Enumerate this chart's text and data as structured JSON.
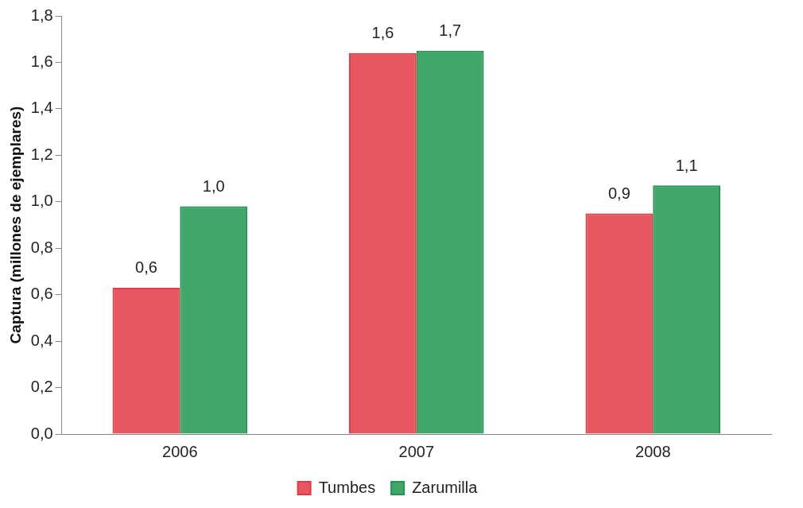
{
  "chart_data": {
    "type": "bar",
    "ylabel": "Captura (millones de ejemplares)",
    "categories": [
      "2006",
      "2007",
      "2008"
    ],
    "series": [
      {
        "name": "Tumbes",
        "color": "#e23a44",
        "values": [
          0.63,
          1.64,
          0.95
        ],
        "value_labels": [
          "0,6",
          "1,6",
          "0,9"
        ]
      },
      {
        "name": "Zarumilla",
        "color": "#1e9650",
        "values": [
          0.98,
          1.65,
          1.07
        ],
        "value_labels": [
          "1,0",
          "1,7",
          "1,1"
        ]
      }
    ],
    "ylim": [
      0,
      1.8
    ],
    "yticks": [
      {
        "value": 0,
        "label": "0,0"
      },
      {
        "value": 0.2,
        "label": "0,2"
      },
      {
        "value": 0.4,
        "label": "0,4"
      },
      {
        "value": 0.6,
        "label": "0,6"
      },
      {
        "value": 0.8,
        "label": "0,8"
      },
      {
        "value": 1,
        "label": "1,0"
      },
      {
        "value": 1.2,
        "label": "1,2"
      },
      {
        "value": 1.4,
        "label": "1,4"
      },
      {
        "value": 1.6,
        "label": "1,6"
      },
      {
        "value": 1.8,
        "label": "1,8"
      }
    ],
    "grid": false,
    "legend": "bottom"
  }
}
